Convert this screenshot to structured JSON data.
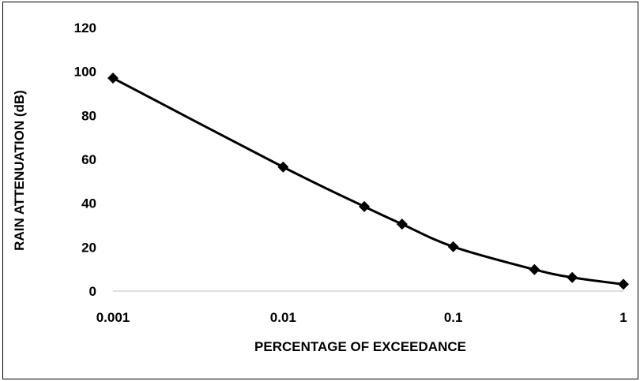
{
  "chart_data": {
    "type": "line",
    "title": "",
    "xlabel": "PERCENTAGE OF EXCEEDANCE",
    "ylabel": "RAIN ATTENUATION (dB)",
    "x_scale": "log",
    "xlim": [
      0.001,
      1
    ],
    "ylim": [
      0,
      120
    ],
    "x_ticks": [
      "0.001",
      "0.01",
      "0.1",
      "1"
    ],
    "y_ticks": [
      "0",
      "20",
      "40",
      "60",
      "80",
      "100",
      "120"
    ],
    "grid": false,
    "legend": "none",
    "series": [
      {
        "color": "#000000",
        "marker": "diamond",
        "x": [
          0.001,
          0.01,
          0.03,
          0.05,
          0.1,
          0.3,
          0.5,
          1
        ],
        "y": [
          97,
          56.5,
          38.5,
          30.5,
          20.2,
          9.8,
          6.2,
          3.1
        ]
      }
    ]
  }
}
